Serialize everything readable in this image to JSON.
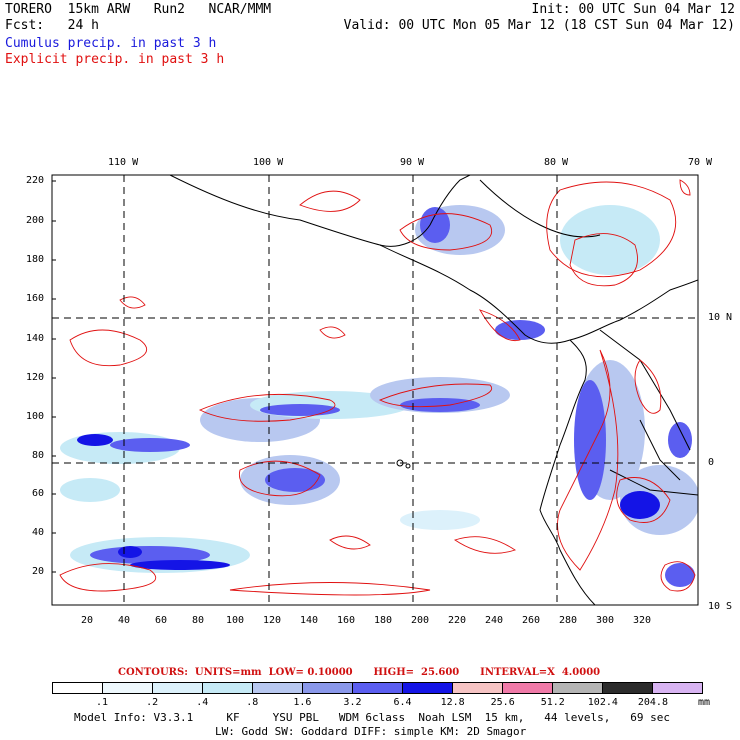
{
  "header": {
    "model": "TORERO  15km ARW   Run2   NCAR/MMM",
    "init": "Init: 00 UTC Sun 04 Mar 12",
    "fcst_label": "Fcst:   24 h",
    "valid": "Valid: 00 UTC Mon 05 Mar 12 (18 CST Sun 04 Mar 12)"
  },
  "legend_lines": {
    "cumulus": "Cumulus precip. in past 3 h",
    "explicit": "Explicit precip. in past 3 h"
  },
  "colors": {
    "cumulus_text": "#1a1adc",
    "explicit_text": "#e01010",
    "land": "#ffffff",
    "coast": "#000000",
    "contour": "#e01010"
  },
  "map": {
    "top_lon_labels": [
      "110 W",
      "100 W",
      "90 W",
      "80 W",
      "70 W"
    ],
    "right_lat_labels": [
      "10 N",
      "0",
      "10 S"
    ],
    "left_ticks": [
      "220",
      "200",
      "180",
      "160",
      "140",
      "120",
      "100",
      "80",
      "60",
      "40",
      "20"
    ],
    "bottom_ticks": [
      "20",
      "40",
      "60",
      "80",
      "100",
      "120",
      "140",
      "160",
      "180",
      "200",
      "220",
      "240",
      "260",
      "280",
      "300",
      "320"
    ]
  },
  "contours_info": {
    "label": "CONTOURS:  UNITS=mm  LOW= 0.10000      HIGH=  25.600      INTERVAL=X  4.0000"
  },
  "colorbar": {
    "unit": "mm",
    "labels": [
      ".1",
      ".2",
      ".4",
      ".8",
      "1.6",
      "3.2",
      "6.4",
      "12.8",
      "25.6",
      "51.2",
      "102.4",
      "204.8"
    ],
    "colors": [
      "#ffffff",
      "#eef8fd",
      "#dcf1fb",
      "#c6eaf6",
      "#b8c8f0",
      "#8a98ea",
      "#5b5ef0",
      "#1414e6",
      "#f6c4c4",
      "#f07aa8",
      "#b4b4b4",
      "#2c2c2c",
      "#d8b4f2"
    ]
  },
  "model_info": {
    "line1": "Model Info: V3.3.1     KF     YSU PBL   WDM 6class  Noah LSM  15 km,   44 levels,   69 sec",
    "line2": "LW: Godd SW: Goddard DIFF: simple KM: 2D Smagor"
  }
}
